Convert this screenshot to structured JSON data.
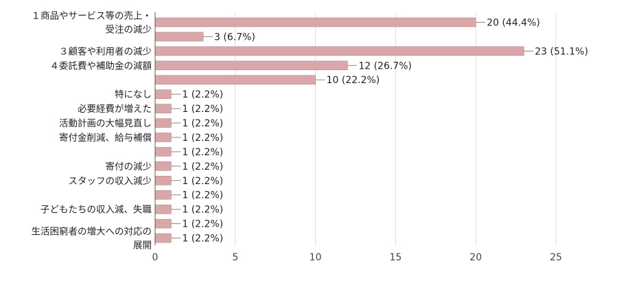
{
  "chart_data": {
    "type": "bar",
    "orientation": "horizontal",
    "categories": [
      [
        "１商品やサービス等の売上・",
        "受注の減少"
      ],
      [
        ""
      ],
      [
        "３顧客や利用者の減少"
      ],
      [
        "４委託費や補助金の減額"
      ],
      [
        ""
      ],
      [
        "特になし"
      ],
      [
        "必要経費が増えた"
      ],
      [
        "活動計画の大幅見直し"
      ],
      [
        "寄付金削減、給与補償"
      ],
      [
        ""
      ],
      [
        "寄付の減少"
      ],
      [
        "スタッフの収入減少"
      ],
      [
        ""
      ],
      [
        "子どもたちの収入減、失職"
      ],
      [
        ""
      ],
      [
        "生活困窮者の増大への対応の",
        "展開"
      ]
    ],
    "values": [
      20,
      3,
      23,
      12,
      10,
      1,
      1,
      1,
      1,
      1,
      1,
      1,
      1,
      1,
      1,
      1
    ],
    "data_labels": [
      "20 (44.4%)",
      "3 (6.7%)",
      "23 (51.1%)",
      "12 (26.7%)",
      "10 (22.2%)",
      "1 (2.2%)",
      "1 (2.2%)",
      "1 (2.2%)",
      "1 (2.2%)",
      "1 (2.2%)",
      "1 (2.2%)",
      "1 (2.2%)",
      "1 (2.2%)",
      "1 (2.2%)",
      "1 (2.2%)",
      "1 (2.2%)"
    ],
    "xticks": [
      "0",
      "5",
      "10",
      "15",
      "20",
      "25"
    ],
    "xlim": [
      0,
      25
    ],
    "grid": true,
    "bar_color": "#d9a7a9",
    "bar_edge_color": "#b98588"
  }
}
